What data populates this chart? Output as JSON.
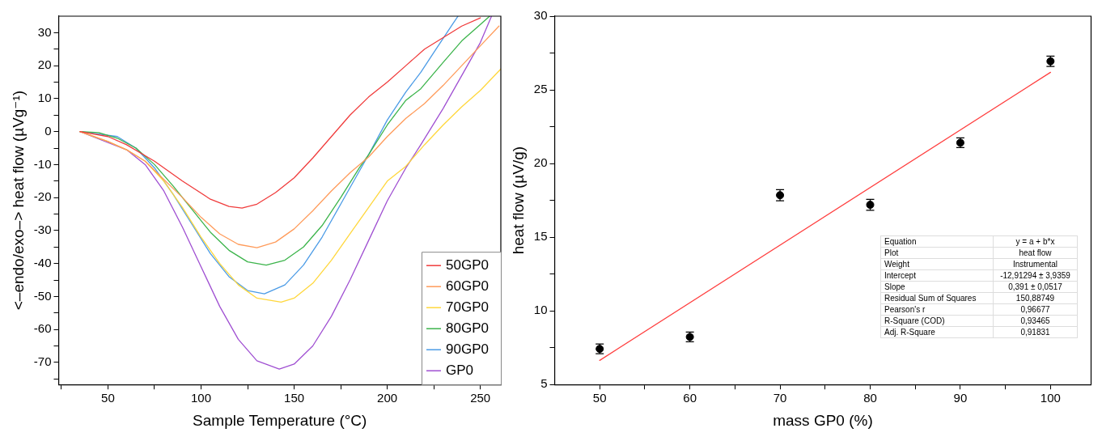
{
  "chart_data": [
    {
      "type": "line",
      "xlabel": "Sample Temperature (°C)",
      "ylabel": "<–endo/exo–> heat flow (µVg⁻¹)",
      "xlim": [
        23.5,
        261
      ],
      "ylim": [
        -76.7,
        35
      ],
      "xticks": [
        {
          "value": 25,
          "label": null
        },
        50,
        {
          "value": 75,
          "label": null
        },
        100,
        {
          "value": 125,
          "label": null
        },
        150,
        {
          "value": 175,
          "label": null
        },
        200,
        {
          "value": 225,
          "label": null
        },
        250
      ],
      "yticks": [
        {
          "value": -75,
          "label": null
        },
        -70,
        {
          "value": -65,
          "label": null
        },
        -60,
        {
          "value": -55,
          "label": null
        },
        -50,
        {
          "value": -45,
          "label": null
        },
        -40,
        {
          "value": -35,
          "label": null
        },
        -30,
        {
          "value": -25,
          "label": null
        },
        -20,
        {
          "value": -15,
          "label": null
        },
        -10,
        {
          "value": -5,
          "label": null
        },
        0,
        {
          "value": 5,
          "label": null
        },
        10,
        {
          "value": 15,
          "label": null
        },
        20,
        {
          "value": 25,
          "label": null
        },
        30
      ],
      "grid": false,
      "legend": "bottom right",
      "line_style": "solid",
      "series": [
        {
          "name": "50GP0",
          "color": "#f03c3c",
          "x": [
            35,
            50,
            60,
            75,
            90,
            105,
            115,
            122,
            130,
            140,
            150,
            160,
            170,
            180,
            190,
            200,
            210,
            220,
            230,
            240,
            250
          ],
          "values": [
            0,
            -1.5,
            -4,
            -9,
            -15,
            -20.5,
            -22.7,
            -23.2,
            -22,
            -18.5,
            -14,
            -8,
            -1.5,
            5,
            10.5,
            15,
            20,
            25,
            28.5,
            32,
            34.5
          ]
        },
        {
          "name": "60GP0",
          "color": "#ff9b5a",
          "x": [
            35,
            50,
            60,
            70,
            80,
            90,
            100,
            110,
            120,
            130,
            140,
            150,
            160,
            170,
            180,
            190,
            200,
            210,
            220,
            230,
            240,
            250,
            260
          ],
          "values": [
            0,
            -3,
            -5.5,
            -9,
            -14.5,
            -20,
            -26,
            -31,
            -34.2,
            -35.2,
            -33.5,
            -29.5,
            -24,
            -18,
            -12.5,
            -7.7,
            -1.5,
            4,
            8.5,
            14,
            20,
            26,
            32
          ]
        },
        {
          "name": "70GP0",
          "color": "#ffd73c",
          "x": [
            35,
            50,
            60,
            70,
            80,
            90,
            100,
            110,
            120,
            130,
            143,
            150,
            160,
            170,
            180,
            190,
            200,
            210,
            220,
            230,
            240,
            250,
            261
          ],
          "values": [
            0,
            -3,
            -5.5,
            -9,
            -15,
            -23,
            -32,
            -40,
            -46.5,
            -50.5,
            -51.7,
            -50.5,
            -46,
            -39,
            -31,
            -23,
            -15,
            -10.5,
            -4,
            2,
            7.5,
            12.5,
            19
          ]
        },
        {
          "name": "80GP0",
          "color": "#3cb44b",
          "x": [
            35,
            45,
            55,
            65,
            75,
            85,
            95,
            105,
            115,
            125,
            135,
            145,
            155,
            165,
            175,
            185,
            190,
            200,
            210,
            218,
            230,
            240,
            250,
            255
          ],
          "values": [
            0,
            -0.3,
            -2,
            -5,
            -10,
            -16.5,
            -23.5,
            -30.5,
            -36,
            -39.5,
            -40.5,
            -39,
            -35,
            -28.5,
            -20,
            -11,
            -7,
            2,
            9.5,
            13,
            21,
            27.5,
            32.5,
            35
          ]
        },
        {
          "name": "90GP0",
          "color": "#4b9be6",
          "x": [
            35,
            55,
            65,
            75,
            85,
            95,
            105,
            115,
            125,
            134,
            145,
            155,
            165,
            175,
            185,
            190,
            200,
            210,
            218,
            225,
            235,
            238
          ],
          "values": [
            0,
            -1.5,
            -5,
            -11,
            -19,
            -28,
            -37,
            -44,
            -48.2,
            -49.2,
            -46.5,
            -40.5,
            -32,
            -22,
            -12,
            -7,
            3.5,
            12,
            18,
            24,
            32.5,
            35
          ]
        },
        {
          "name": "GP0",
          "color": "#a050d2",
          "x": [
            35,
            60,
            70,
            80,
            90,
            100,
            110,
            120,
            130,
            142,
            150,
            160,
            170,
            180,
            190,
            200,
            210,
            218,
            230,
            240,
            250,
            256
          ],
          "values": [
            0,
            -5.5,
            -10,
            -18,
            -29,
            -41,
            -53,
            -63,
            -69.5,
            -72,
            -70.5,
            -65,
            -56,
            -45,
            -33,
            -21,
            -11,
            -4,
            7,
            17,
            27,
            35
          ]
        }
      ]
    },
    {
      "type": "scatter",
      "xlabel": "mass GP0 (%)",
      "ylabel": "heat flow (µV/g)",
      "xlim": [
        45,
        104.5
      ],
      "ylim": [
        5,
        30
      ],
      "xticks": [
        50,
        {
          "value": 55,
          "label": null
        },
        60,
        {
          "value": 65,
          "label": null
        },
        70,
        {
          "value": 75,
          "label": null
        },
        80,
        {
          "value": 85,
          "label": null
        },
        90,
        {
          "value": 95,
          "label": null
        },
        100
      ],
      "yticks": [
        5,
        {
          "value": 7.5,
          "label": null
        },
        10,
        {
          "value": 12.5,
          "label": null
        },
        15,
        {
          "value": 17.5,
          "label": null
        },
        20,
        {
          "value": 22.5,
          "label": null
        },
        25,
        {
          "value": 27.5,
          "label": null
        },
        30
      ],
      "grid": false,
      "marker": "circle",
      "x": [
        50,
        60,
        70,
        80,
        90,
        100
      ],
      "series": [
        {
          "color": "#000000",
          "values": [
            7.42,
            8.23,
            17.85,
            17.2,
            21.41,
            26.94
          ],
          "errors": [
            0.33,
            0.33,
            0.38,
            0.37,
            0.33,
            0.35
          ]
        },
        {
          "type": "line",
          "marker": "none",
          "color": "#ff4040",
          "x": [
            50,
            100
          ],
          "values": [
            6.64,
            26.19
          ]
        }
      ],
      "annotations": [
        "Equation",
        "y = a + b*x",
        "Plot",
        "heat flow",
        "Weight",
        "Instrumental",
        "Intercept",
        "-12,91294 ± 3,9359",
        "Slope",
        "0,391 ± 0,0517",
        "Residual Sum of Squares",
        "150,88749",
        "Pearson's r",
        "0,96677",
        "R-Square (COD)",
        "0,93465",
        "Adj. R-Square",
        "0,91831"
      ]
    }
  ]
}
